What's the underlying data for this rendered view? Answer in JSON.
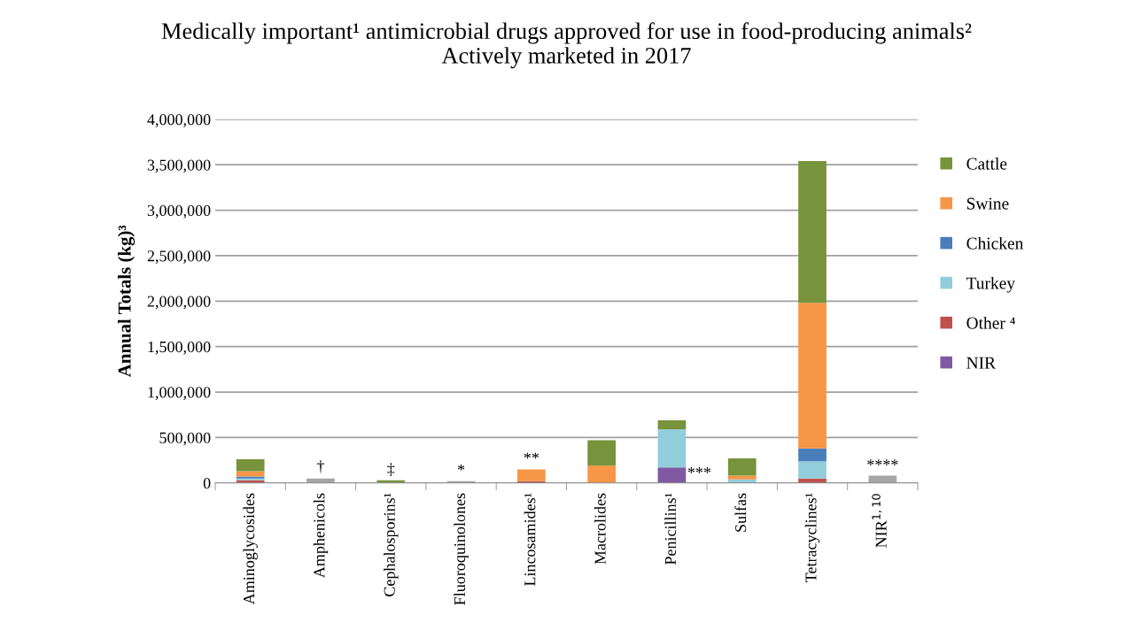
{
  "chart_data": {
    "type": "bar",
    "stacked": true,
    "title": "Medically important¹ antimicrobial drugs approved for use in food-producing animals²\nActively marketed in 2017",
    "ylabel": "Annual Totals (kg)³",
    "categories": [
      "Aminoglycosides",
      "Amphenicols",
      "Cephalosporins¹",
      "Fluoroquinolones",
      "Lincosamides¹",
      "Macrolides",
      "Penicillins¹",
      "Sulfas",
      "Tetracyclines¹",
      "NIR$^{1,10}$"
    ],
    "series": [
      {
        "name": "NIR",
        "color": "#7f5aa2",
        "values": [
          0,
          0,
          0,
          0,
          0,
          0,
          170000,
          0,
          0,
          0
        ]
      },
      {
        "name": "Other ⁴",
        "color": "#c0504d",
        "values": [
          30000,
          0,
          0,
          0,
          20000,
          0,
          0,
          0,
          50000,
          0
        ]
      },
      {
        "name": "Turkey",
        "color": "#92cddc",
        "values": [
          20000,
          0,
          0,
          0,
          0,
          0,
          420000,
          40000,
          190000,
          0
        ]
      },
      {
        "name": "Chicken",
        "color": "#4a7ebb",
        "values": [
          20000,
          0,
          0,
          0,
          0,
          0,
          0,
          0,
          140000,
          0
        ]
      },
      {
        "name": "Swine",
        "color": "#f79646",
        "values": [
          60000,
          0,
          0,
          0,
          130000,
          190000,
          0,
          40000,
          1600000,
          0
        ]
      },
      {
        "name": "Cattle",
        "color": "#77933c",
        "values": [
          130000,
          0,
          30000,
          0,
          0,
          280000,
          100000,
          190000,
          1560000,
          0
        ]
      },
      {
        "color": "#a6a6a6",
        "values": [
          0,
          50000,
          0,
          20000,
          0,
          0,
          0,
          0,
          0,
          80000
        ]
      }
    ],
    "annotations": [
      {
        "text": "†",
        "x": "Amphenicols",
        "y": 90000
      },
      {
        "text": "‡",
        "x": "Cephalosporins¹",
        "y": 60000
      },
      {
        "text": "*",
        "x": "Fluoroquinolones",
        "y": 50000
      },
      {
        "text": "**",
        "x": "Lincosamides¹",
        "y": 180000
      },
      {
        "text": "***",
        "x": "Penicillins¹",
        "y": 20000
      },
      {
        "text": "****",
        "x": "NIR$^{1,10}$",
        "y": 105000
      }
    ],
    "ylim": [
      0,
      4000000
    ],
    "yticks": [
      {
        "value": 0,
        "label": "0"
      },
      {
        "value": 500000,
        "label": "500,000"
      },
      {
        "value": 1000000,
        "label": "1,000,000"
      },
      {
        "value": 1500000,
        "label": "1,500,000"
      },
      {
        "value": 2000000,
        "label": "2,000,000"
      },
      {
        "value": 2500000,
        "label": "2,500,000"
      },
      {
        "value": 3000000,
        "label": "3,000,000"
      },
      {
        "value": 3500000,
        "label": "3,500,000"
      },
      {
        "value": 4000000,
        "label": "4,000,000"
      }
    ],
    "grid": "y",
    "legend": "right"
  }
}
